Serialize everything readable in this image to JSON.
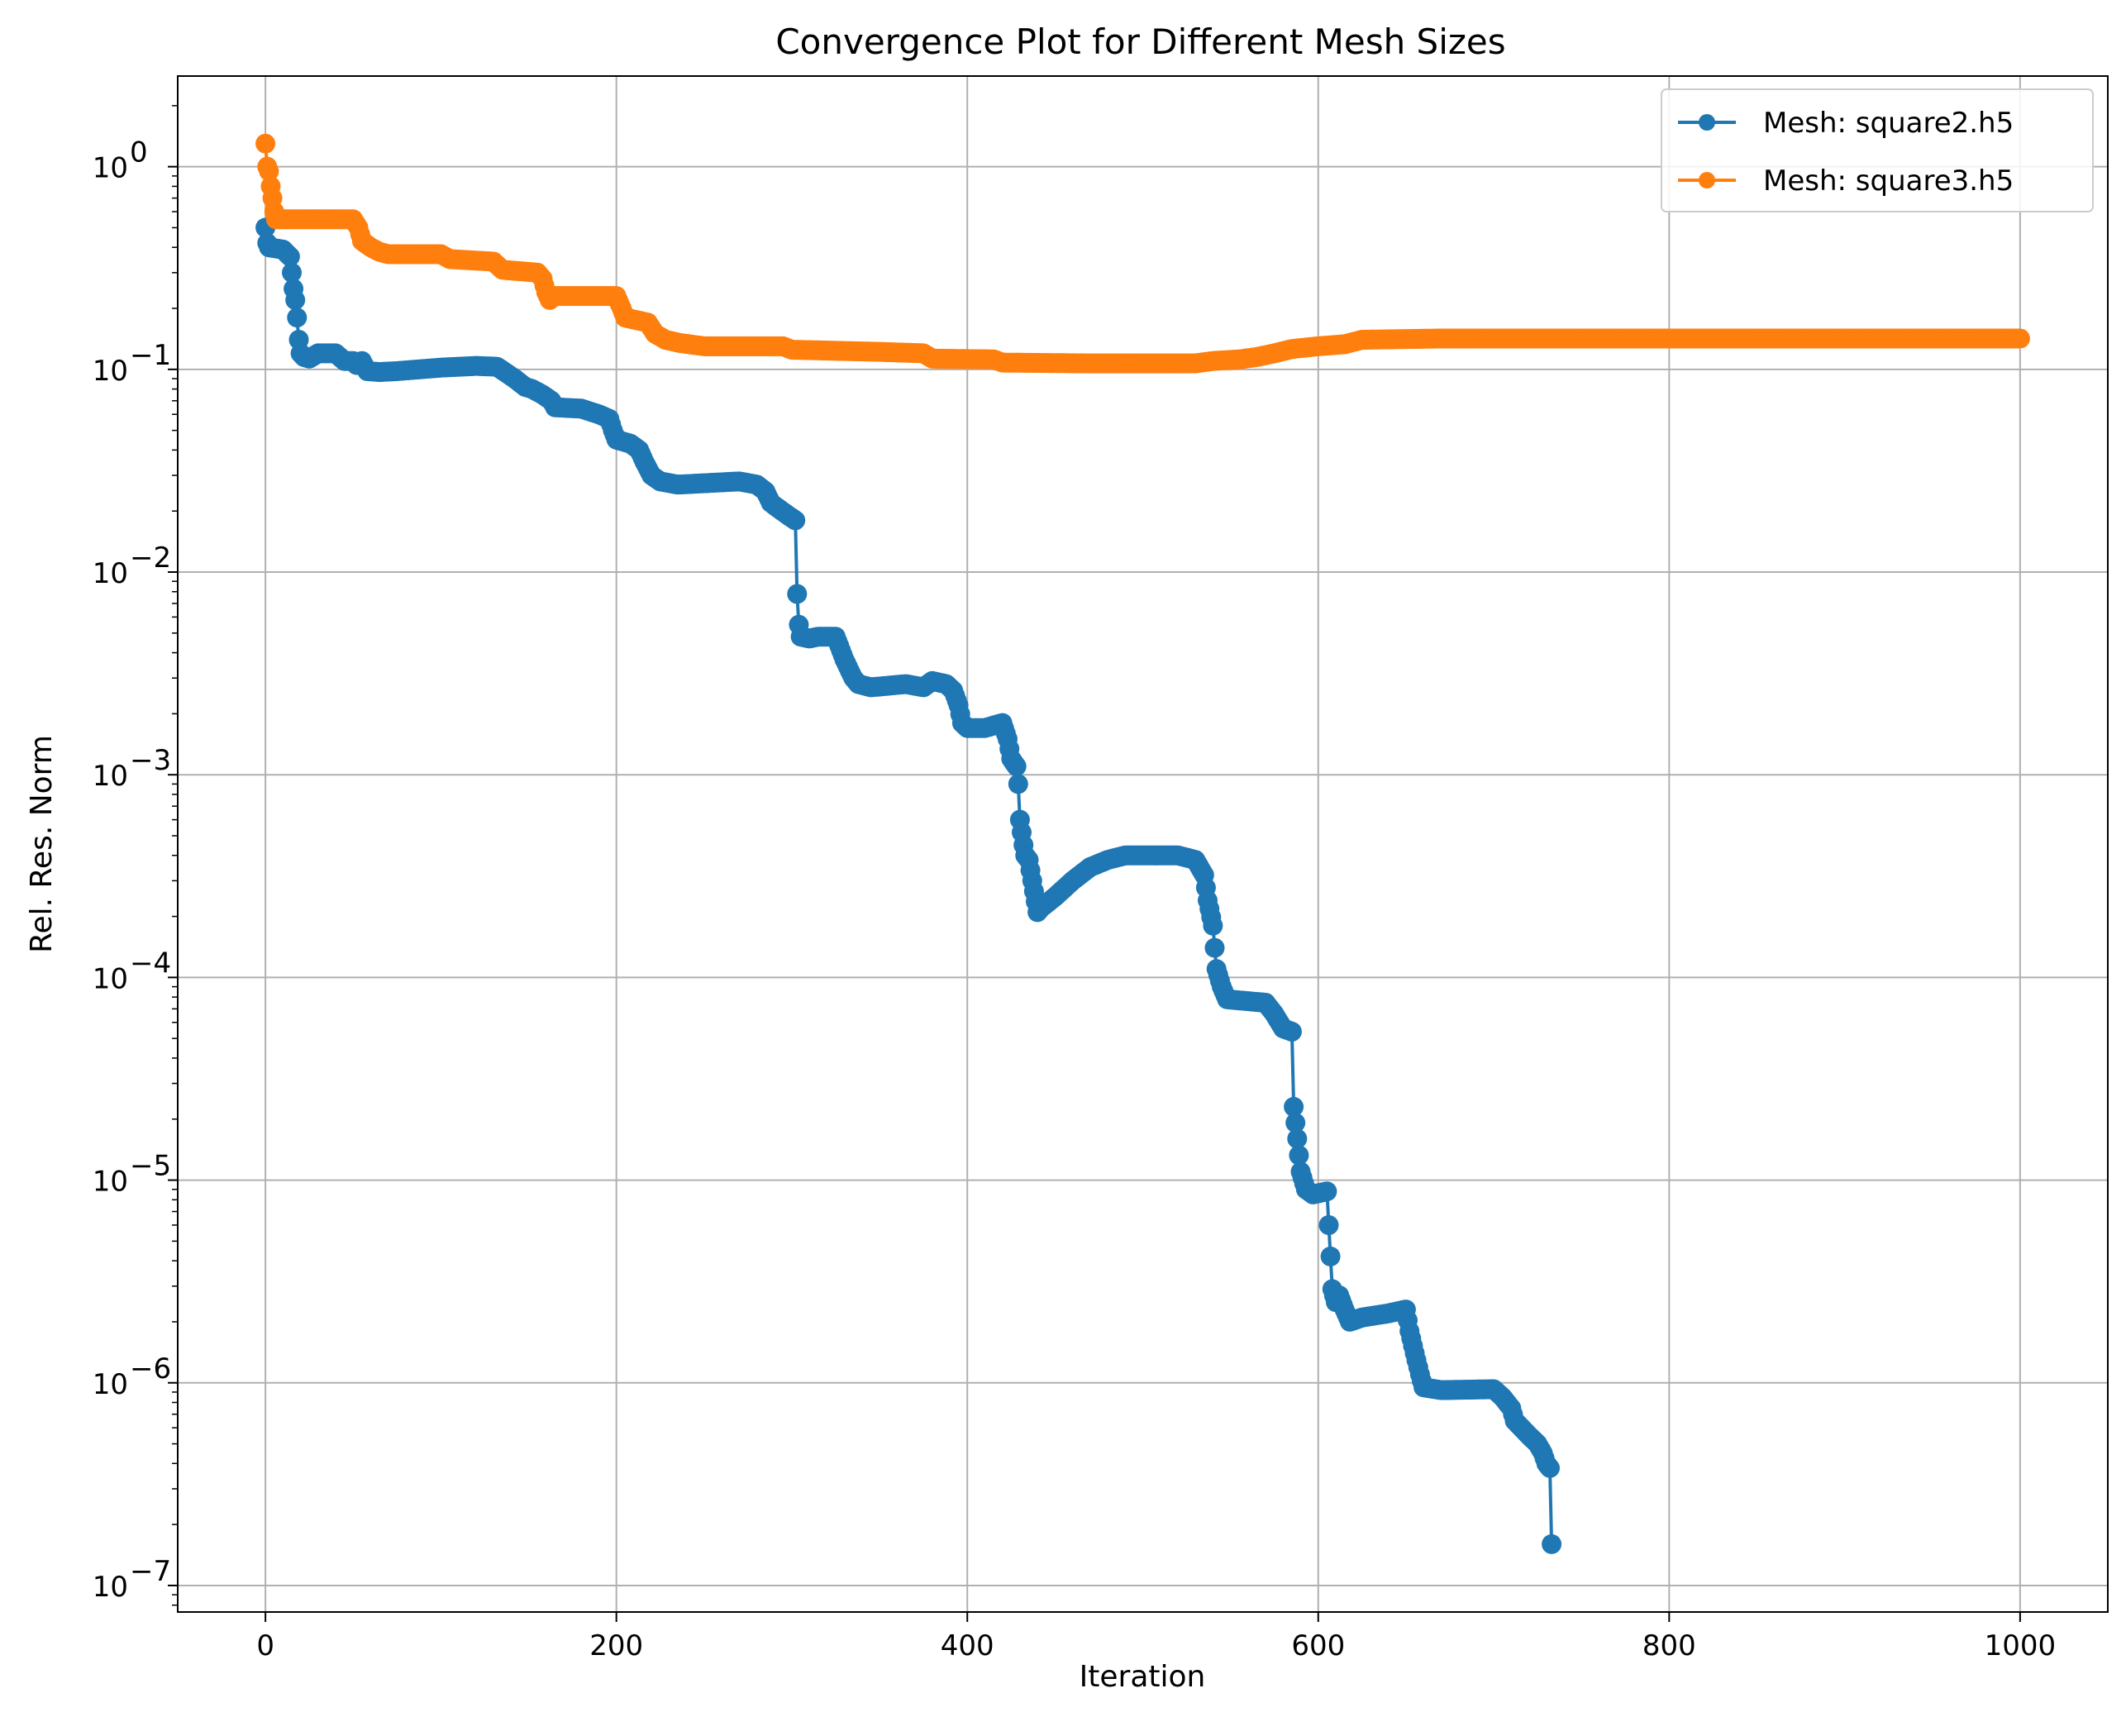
{
  "chart_data": {
    "type": "line",
    "title": "Convergence Plot for Different Mesh Sizes",
    "xlabel": "Iteration",
    "ylabel": "Rel. Res. Norm",
    "xlim": [
      -50,
      1050
    ],
    "ylim": [
      7.4e-08,
      2.8
    ],
    "yscale": "log",
    "grid": true,
    "legend_position": "top-right",
    "x_ticks": [
      0,
      200,
      400,
      600,
      800,
      1000
    ],
    "x_tick_labels": [
      "0",
      "200",
      "400",
      "600",
      "800",
      "1000"
    ],
    "y_tick_exponents": [
      0,
      -1,
      -2,
      -3,
      -4,
      -5,
      -6,
      -7
    ],
    "y_tick_labels": [
      "10",
      "10",
      "10",
      "10",
      "10",
      "10",
      "10",
      "10"
    ],
    "y_tick_label_exponents": [
      "0",
      "−1",
      "−2",
      "−3",
      "−4",
      "−5",
      "−6",
      "−7"
    ],
    "series": [
      {
        "name": "Mesh: square2.h5",
        "color": "#1f77b4",
        "points": [
          [
            0,
            0.5
          ],
          [
            1,
            0.42
          ],
          [
            2,
            0.4
          ],
          [
            10,
            0.39
          ],
          [
            14,
            0.36
          ],
          [
            15,
            0.3
          ],
          [
            16,
            0.25
          ],
          [
            17,
            0.22
          ],
          [
            18,
            0.18
          ],
          [
            19,
            0.14
          ],
          [
            20,
            0.12
          ],
          [
            22,
            0.115
          ],
          [
            25,
            0.113
          ],
          [
            30,
            0.12
          ],
          [
            40,
            0.12
          ],
          [
            45,
            0.11
          ],
          [
            50,
            0.11
          ],
          [
            52,
            0.105
          ],
          [
            55,
            0.11
          ],
          [
            58,
            0.098
          ],
          [
            65,
            0.097
          ],
          [
            75,
            0.098
          ],
          [
            100,
            0.102
          ],
          [
            120,
            0.104
          ],
          [
            132,
            0.103
          ],
          [
            138,
            0.095
          ],
          [
            142,
            0.09
          ],
          [
            148,
            0.082
          ],
          [
            152,
            0.08
          ],
          [
            158,
            0.075
          ],
          [
            163,
            0.07
          ],
          [
            165,
            0.065
          ],
          [
            180,
            0.064
          ],
          [
            190,
            0.06
          ],
          [
            196,
            0.057
          ],
          [
            198,
            0.05
          ],
          [
            200,
            0.045
          ],
          [
            208,
            0.043
          ],
          [
            213,
            0.04
          ],
          [
            216,
            0.035
          ],
          [
            220,
            0.03
          ],
          [
            225,
            0.028
          ],
          [
            235,
            0.027
          ],
          [
            270,
            0.028
          ],
          [
            280,
            0.027
          ],
          [
            285,
            0.025
          ],
          [
            288,
            0.022
          ],
          [
            291,
            0.021
          ],
          [
            298,
            0.019
          ],
          [
            302,
            0.018
          ],
          [
            303,
            0.0078
          ],
          [
            304,
            0.0055
          ],
          [
            305,
            0.0048
          ],
          [
            310,
            0.0047
          ],
          [
            315,
            0.0048
          ],
          [
            325,
            0.0048
          ],
          [
            330,
            0.0037
          ],
          [
            335,
            0.003
          ],
          [
            338,
            0.0028
          ],
          [
            345,
            0.0027
          ],
          [
            365,
            0.0028
          ],
          [
            375,
            0.0027
          ],
          [
            380,
            0.0029
          ],
          [
            388,
            0.0028
          ],
          [
            392,
            0.0026
          ],
          [
            395,
            0.0022
          ],
          [
            397,
            0.0018
          ],
          [
            400,
            0.0017
          ],
          [
            410,
            0.0017
          ],
          [
            420,
            0.0018
          ],
          [
            423,
            0.0015
          ],
          [
            425,
            0.0012
          ],
          [
            428,
            0.0011
          ],
          [
            429,
            0.0009
          ],
          [
            430,
            0.0006
          ],
          [
            432,
            0.00045
          ],
          [
            433,
            0.0004
          ],
          [
            435,
            0.00038
          ],
          [
            437,
            0.0003
          ],
          [
            440,
            0.00021
          ],
          [
            442,
            0.00022
          ],
          [
            450,
            0.00025
          ],
          [
            460,
            0.0003
          ],
          [
            470,
            0.00035
          ],
          [
            480,
            0.00038
          ],
          [
            490,
            0.0004
          ],
          [
            520,
            0.0004
          ],
          [
            530,
            0.00038
          ],
          [
            535,
            0.00032
          ],
          [
            537,
            0.00024
          ],
          [
            540,
            0.00018
          ],
          [
            541,
            0.00014
          ],
          [
            542,
            0.00011
          ],
          [
            545,
            9e-05
          ],
          [
            548,
            7.8e-05
          ],
          [
            570,
            7.5e-05
          ],
          [
            575,
            6.6e-05
          ],
          [
            580,
            5.6e-05
          ],
          [
            585,
            5.4e-05
          ],
          [
            586,
            2.3e-05
          ],
          [
            588,
            1.6e-05
          ],
          [
            590,
            1.1e-05
          ],
          [
            593,
            9e-06
          ],
          [
            597,
            8.5e-06
          ],
          [
            605,
            8.8e-06
          ],
          [
            606,
            6e-06
          ],
          [
            607,
            4.2e-06
          ],
          [
            608,
            2.9e-06
          ],
          [
            610,
            2.5e-06
          ],
          [
            612,
            2.7e-06
          ],
          [
            615,
            2.3e-06
          ],
          [
            618,
            2e-06
          ],
          [
            625,
            2.1e-06
          ],
          [
            640,
            2.2e-06
          ],
          [
            650,
            2.3e-06
          ],
          [
            652,
            1.8e-06
          ],
          [
            655,
            1.4e-06
          ],
          [
            658,
            1.1e-06
          ],
          [
            660,
            9.5e-07
          ],
          [
            670,
            9.2e-07
          ],
          [
            700,
            9.3e-07
          ],
          [
            705,
            8.5e-07
          ],
          [
            710,
            7.5e-07
          ],
          [
            712,
            6.5e-07
          ],
          [
            720,
            5.5e-07
          ],
          [
            725,
            5e-07
          ],
          [
            728,
            4.5e-07
          ],
          [
            730,
            4e-07
          ],
          [
            732,
            3.8e-07
          ],
          [
            733,
            1.6e-07
          ]
        ]
      },
      {
        "name": "Mesh: square3.h5",
        "color": "#ff7f0e",
        "points": [
          [
            0,
            1.3
          ],
          [
            1,
            1.0
          ],
          [
            2,
            0.95
          ],
          [
            3,
            0.8
          ],
          [
            4,
            0.7
          ],
          [
            5,
            0.6
          ],
          [
            6,
            0.55
          ],
          [
            20,
            0.55
          ],
          [
            50,
            0.55
          ],
          [
            53,
            0.5
          ],
          [
            55,
            0.43
          ],
          [
            60,
            0.4
          ],
          [
            65,
            0.38
          ],
          [
            70,
            0.37
          ],
          [
            100,
            0.37
          ],
          [
            105,
            0.35
          ],
          [
            130,
            0.34
          ],
          [
            135,
            0.31
          ],
          [
            155,
            0.3
          ],
          [
            158,
            0.28
          ],
          [
            160,
            0.24
          ],
          [
            162,
            0.22
          ],
          [
            165,
            0.23
          ],
          [
            200,
            0.23
          ],
          [
            203,
            0.2
          ],
          [
            205,
            0.18
          ],
          [
            218,
            0.17
          ],
          [
            222,
            0.15
          ],
          [
            228,
            0.14
          ],
          [
            236,
            0.135
          ],
          [
            250,
            0.13
          ],
          [
            295,
            0.13
          ],
          [
            300,
            0.125
          ],
          [
            350,
            0.122
          ],
          [
            375,
            0.12
          ],
          [
            380,
            0.113
          ],
          [
            415,
            0.112
          ],
          [
            420,
            0.108
          ],
          [
            470,
            0.107
          ],
          [
            530,
            0.107
          ],
          [
            540,
            0.11
          ],
          [
            555,
            0.112
          ],
          [
            565,
            0.115
          ],
          [
            575,
            0.12
          ],
          [
            585,
            0.126
          ],
          [
            600,
            0.13
          ],
          [
            615,
            0.133
          ],
          [
            625,
            0.14
          ],
          [
            670,
            0.142
          ],
          [
            1000,
            0.142
          ]
        ]
      }
    ]
  }
}
